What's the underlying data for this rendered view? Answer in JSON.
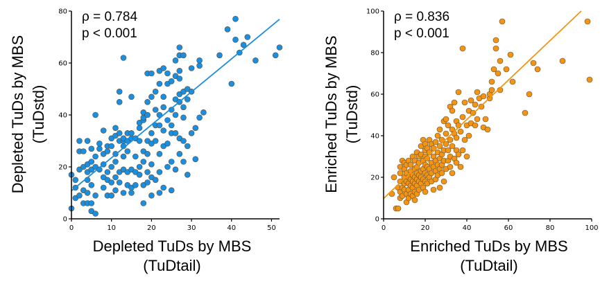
{
  "chart_data": [
    {
      "type": "scatter",
      "xlabel_line1": "Depleted TuDs by MBS",
      "xlabel_line2": "(TuDtail)",
      "ylabel_line1": "Depleted TuDs by MBS",
      "ylabel_line2": "(TuDstd)",
      "stat_rho": "ρ = 0.784",
      "stat_p": "p < 0.001",
      "xlim": [
        0,
        52
      ],
      "ylim": [
        0,
        80
      ],
      "x_ticks": [
        "0",
        "10",
        "20",
        "30",
        "40",
        "50"
      ],
      "y_ticks": [
        "0",
        "20",
        "40",
        "60",
        "80"
      ],
      "color": "#1a8ee0",
      "trend": {
        "intercept": 10.8,
        "slope": 1.27
      },
      "points": [
        [
          0,
          4
        ],
        [
          0,
          17
        ],
        [
          1,
          8
        ],
        [
          1,
          12
        ],
        [
          1,
          15
        ],
        [
          2,
          9
        ],
        [
          2,
          19
        ],
        [
          2,
          26
        ],
        [
          2,
          30
        ],
        [
          3,
          6
        ],
        [
          3,
          11
        ],
        [
          3,
          20
        ],
        [
          3,
          26
        ],
        [
          4,
          6
        ],
        [
          4,
          10
        ],
        [
          4,
          15
        ],
        [
          4,
          18
        ],
        [
          4,
          21
        ],
        [
          4,
          30
        ],
        [
          5,
          3
        ],
        [
          5,
          6
        ],
        [
          5,
          13
        ],
        [
          5,
          19
        ],
        [
          5,
          22
        ],
        [
          5,
          27
        ],
        [
          6,
          2
        ],
        [
          6,
          9
        ],
        [
          6,
          20
        ],
        [
          6,
          24
        ],
        [
          6,
          40
        ],
        [
          7,
          19
        ],
        [
          7,
          27
        ],
        [
          7,
          29
        ],
        [
          8,
          12
        ],
        [
          8,
          16
        ],
        [
          8,
          21
        ],
        [
          8,
          25
        ],
        [
          8,
          34
        ],
        [
          9,
          9
        ],
        [
          9,
          15
        ],
        [
          9,
          18
        ],
        [
          9,
          26
        ],
        [
          9,
          28
        ],
        [
          10,
          9
        ],
        [
          10,
          14
        ],
        [
          10,
          20
        ],
        [
          10,
          28
        ],
        [
          10,
          31
        ],
        [
          11,
          11
        ],
        [
          11,
          16
        ],
        [
          11,
          22
        ],
        [
          11,
          25
        ],
        [
          11,
          32
        ],
        [
          11,
          35
        ],
        [
          12,
          14
        ],
        [
          12,
          18
        ],
        [
          12,
          30
        ],
        [
          12,
          33
        ],
        [
          12,
          45
        ],
        [
          12,
          49
        ],
        [
          13,
          10
        ],
        [
          13,
          19
        ],
        [
          13,
          24
        ],
        [
          13,
          28
        ],
        [
          13,
          30
        ],
        [
          13,
          31
        ],
        [
          13,
          62
        ],
        [
          14,
          13
        ],
        [
          14,
          18
        ],
        [
          14,
          26
        ],
        [
          14,
          30
        ],
        [
          14,
          33
        ],
        [
          15,
          10
        ],
        [
          15,
          12
        ],
        [
          15,
          19
        ],
        [
          15,
          31
        ],
        [
          15,
          33
        ],
        [
          15,
          47
        ],
        [
          16,
          13
        ],
        [
          16,
          18
        ],
        [
          16,
          24
        ],
        [
          16,
          31
        ],
        [
          17,
          17
        ],
        [
          17,
          20
        ],
        [
          17,
          30
        ],
        [
          17,
          35
        ],
        [
          17,
          37
        ],
        [
          18,
          6
        ],
        [
          18,
          13
        ],
        [
          18,
          22
        ],
        [
          18,
          26
        ],
        [
          18,
          38
        ],
        [
          18,
          39
        ],
        [
          18,
          41
        ],
        [
          19,
          14
        ],
        [
          19,
          18
        ],
        [
          19,
          25
        ],
        [
          19,
          30
        ],
        [
          19,
          40
        ],
        [
          19,
          45
        ],
        [
          19,
          56
        ],
        [
          20,
          9
        ],
        [
          20,
          16
        ],
        [
          20,
          21
        ],
        [
          20,
          29
        ],
        [
          20,
          33
        ],
        [
          20,
          47
        ],
        [
          20,
          56
        ],
        [
          21,
          15
        ],
        [
          21,
          30
        ],
        [
          21,
          36
        ],
        [
          21,
          42
        ],
        [
          21,
          49
        ],
        [
          22,
          10
        ],
        [
          22,
          18
        ],
        [
          22,
          25
        ],
        [
          22,
          36
        ],
        [
          22,
          40
        ],
        [
          22,
          52
        ],
        [
          22,
          57
        ],
        [
          23,
          12
        ],
        [
          23,
          28
        ],
        [
          23,
          34
        ],
        [
          23,
          43
        ],
        [
          23,
          47
        ],
        [
          23,
          58
        ],
        [
          24,
          20
        ],
        [
          24,
          29
        ],
        [
          24,
          38
        ],
        [
          24,
          52
        ],
        [
          24,
          56
        ],
        [
          25,
          11
        ],
        [
          25,
          22
        ],
        [
          25,
          33
        ],
        [
          25,
          36
        ],
        [
          25,
          42
        ],
        [
          25,
          53
        ],
        [
          26,
          19
        ],
        [
          26,
          33
        ],
        [
          26,
          40
        ],
        [
          26,
          46
        ],
        [
          26,
          55
        ],
        [
          26,
          61
        ],
        [
          27,
          25
        ],
        [
          27,
          31
        ],
        [
          27,
          45
        ],
        [
          27,
          48
        ],
        [
          27,
          54
        ],
        [
          27,
          57
        ],
        [
          27,
          63
        ],
        [
          27,
          66
        ],
        [
          28,
          22
        ],
        [
          28,
          30
        ],
        [
          28,
          39
        ],
        [
          28,
          43
        ],
        [
          28,
          49
        ],
        [
          28,
          63
        ],
        [
          29,
          17
        ],
        [
          29,
          28
        ],
        [
          29,
          46
        ],
        [
          29,
          50
        ],
        [
          30,
          33
        ],
        [
          30,
          49
        ],
        [
          30,
          58
        ],
        [
          31,
          23
        ],
        [
          31,
          35
        ],
        [
          32,
          39
        ],
        [
          32,
          59
        ],
        [
          32,
          61
        ],
        [
          33,
          41
        ],
        [
          37,
          63
        ],
        [
          39,
          73
        ],
        [
          40,
          52
        ],
        [
          41,
          69
        ],
        [
          41,
          77
        ],
        [
          42,
          64
        ],
        [
          43,
          67
        ],
        [
          44,
          70
        ],
        [
          46,
          61
        ],
        [
          51,
          63
        ],
        [
          52,
          66
        ]
      ]
    },
    {
      "type": "scatter",
      "xlabel_line1": "Enriched TuDs by MBS",
      "xlabel_line2": "(TuDtail)",
      "ylabel_line1": "Enriched TuDs by MBS",
      "ylabel_line2": "(TuDstd)",
      "stat_rho": "ρ = 0.836",
      "stat_p": "p < 0.001",
      "xlim": [
        0,
        100
      ],
      "ylim": [
        0,
        100
      ],
      "x_ticks": [
        "0",
        "20",
        "40",
        "60",
        "80",
        "100"
      ],
      "y_ticks": [
        "0",
        "20",
        "40",
        "60",
        "80",
        "100"
      ],
      "color": "#f39414",
      "trend": {
        "intercept": 9.8,
        "slope": 0.95
      },
      "points": [
        [
          4,
          12
        ],
        [
          5,
          20
        ],
        [
          6,
          5
        ],
        [
          7,
          5
        ],
        [
          7,
          15
        ],
        [
          8,
          10
        ],
        [
          8,
          13
        ],
        [
          8,
          18
        ],
        [
          8,
          22
        ],
        [
          8,
          25
        ],
        [
          9,
          11
        ],
        [
          9,
          15
        ],
        [
          9,
          28
        ],
        [
          10,
          14
        ],
        [
          10,
          17
        ],
        [
          10,
          20
        ],
        [
          10,
          24
        ],
        [
          10,
          27
        ],
        [
          11,
          8
        ],
        [
          11,
          12
        ],
        [
          11,
          18
        ],
        [
          11,
          22
        ],
        [
          11,
          26
        ],
        [
          12,
          10
        ],
        [
          12,
          14
        ],
        [
          12,
          17
        ],
        [
          12,
          20
        ],
        [
          12,
          28
        ],
        [
          13,
          12
        ],
        [
          13,
          16
        ],
        [
          13,
          19
        ],
        [
          13,
          23
        ],
        [
          13,
          26
        ],
        [
          14,
          11
        ],
        [
          14,
          15
        ],
        [
          14,
          18
        ],
        [
          14,
          21
        ],
        [
          14,
          30
        ],
        [
          15,
          9
        ],
        [
          15,
          13
        ],
        [
          15,
          17
        ],
        [
          15,
          20
        ],
        [
          15,
          24
        ],
        [
          15,
          28
        ],
        [
          16,
          12
        ],
        [
          16,
          16
        ],
        [
          16,
          19
        ],
        [
          16,
          22
        ],
        [
          16,
          25
        ],
        [
          16,
          32
        ],
        [
          17,
          14
        ],
        [
          17,
          18
        ],
        [
          17,
          21
        ],
        [
          17,
          27
        ],
        [
          17,
          30
        ],
        [
          18,
          17
        ],
        [
          18,
          20
        ],
        [
          18,
          23
        ],
        [
          18,
          31
        ],
        [
          18,
          35
        ],
        [
          19,
          15
        ],
        [
          19,
          19
        ],
        [
          19,
          24
        ],
        [
          19,
          28
        ],
        [
          19,
          38
        ],
        [
          20,
          13
        ],
        [
          20,
          18
        ],
        [
          20,
          22
        ],
        [
          20,
          26
        ],
        [
          20,
          30
        ],
        [
          20,
          33
        ],
        [
          20,
          36
        ],
        [
          21,
          17
        ],
        [
          21,
          21
        ],
        [
          21,
          25
        ],
        [
          21,
          29
        ],
        [
          21,
          34
        ],
        [
          22,
          20
        ],
        [
          22,
          24
        ],
        [
          22,
          32
        ],
        [
          22,
          38
        ],
        [
          23,
          18
        ],
        [
          23,
          22
        ],
        [
          23,
          27
        ],
        [
          23,
          36
        ],
        [
          24,
          14
        ],
        [
          24,
          25
        ],
        [
          24,
          30
        ],
        [
          24,
          34
        ],
        [
          25,
          19
        ],
        [
          25,
          23
        ],
        [
          25,
          28
        ],
        [
          25,
          37
        ],
        [
          26,
          21
        ],
        [
          26,
          26
        ],
        [
          26,
          32
        ],
        [
          26,
          40
        ],
        [
          27,
          15
        ],
        [
          27,
          24
        ],
        [
          27,
          29
        ],
        [
          27,
          35
        ],
        [
          27,
          43
        ],
        [
          28,
          22
        ],
        [
          28,
          26
        ],
        [
          28,
          31
        ],
        [
          28,
          38
        ],
        [
          29,
          18
        ],
        [
          29,
          28
        ],
        [
          29,
          33
        ],
        [
          29,
          47
        ],
        [
          30,
          24
        ],
        [
          30,
          36
        ],
        [
          30,
          41
        ],
        [
          30,
          48
        ],
        [
          31,
          28
        ],
        [
          31,
          33
        ],
        [
          31,
          45
        ],
        [
          32,
          25
        ],
        [
          32,
          30
        ],
        [
          32,
          38
        ],
        [
          32,
          54
        ],
        [
          33,
          22
        ],
        [
          33,
          35
        ],
        [
          33,
          43
        ],
        [
          33,
          52
        ],
        [
          34,
          29
        ],
        [
          34,
          41
        ],
        [
          34,
          56
        ],
        [
          35,
          27
        ],
        [
          35,
          33
        ],
        [
          35,
          39
        ],
        [
          35,
          47
        ],
        [
          36,
          31
        ],
        [
          36,
          45
        ],
        [
          36,
          61
        ],
        [
          37,
          25
        ],
        [
          37,
          42
        ],
        [
          38,
          33
        ],
        [
          38,
          49
        ],
        [
          38,
          82
        ],
        [
          39,
          38
        ],
        [
          39,
          56
        ],
        [
          40,
          30
        ],
        [
          40,
          45
        ],
        [
          41,
          40
        ],
        [
          41,
          52
        ],
        [
          42,
          46
        ],
        [
          42,
          57
        ],
        [
          43,
          51
        ],
        [
          44,
          45
        ],
        [
          44,
          55
        ],
        [
          45,
          48
        ],
        [
          45,
          61
        ],
        [
          46,
          58
        ],
        [
          47,
          54
        ],
        [
          48,
          44
        ],
        [
          48,
          59
        ],
        [
          49,
          48
        ],
        [
          50,
          43
        ],
        [
          51,
          58
        ],
        [
          51,
          60
        ],
        [
          52,
          62
        ],
        [
          52,
          66
        ],
        [
          53,
          72
        ],
        [
          54,
          82
        ],
        [
          54,
          86
        ],
        [
          55,
          70
        ],
        [
          56,
          62
        ],
        [
          56,
          76
        ],
        [
          57,
          95
        ],
        [
          59,
          72
        ],
        [
          61,
          79
        ],
        [
          62,
          66
        ],
        [
          68,
          51
        ],
        [
          70,
          60
        ],
        [
          72,
          75
        ],
        [
          74,
          72
        ],
        [
          86,
          76
        ],
        [
          98,
          95
        ],
        [
          99,
          67
        ]
      ]
    }
  ]
}
